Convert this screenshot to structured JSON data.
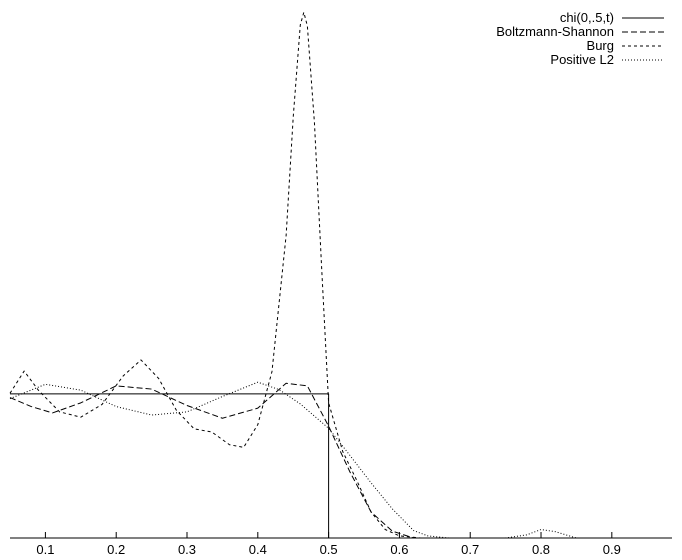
{
  "chart_data": {
    "type": "line",
    "title": "",
    "xlabel": "",
    "ylabel": "",
    "xlim": [
      0.05,
      0.985
    ],
    "ylim": [
      0,
      1
    ],
    "x_ticks": [
      0.1,
      0.2,
      0.3,
      0.4,
      0.5,
      0.6,
      0.7,
      0.8,
      0.9
    ],
    "x_tick_labels": [
      "0.1",
      "0.2",
      "0.3",
      "0.4",
      "0.5",
      "0.6",
      "0.7",
      "0.8",
      "0.9"
    ],
    "grid": false,
    "legend_position": "top-right",
    "series": [
      {
        "name": "chi(0,.5,t)",
        "style": "solid",
        "x": [
          0.05,
          0.5,
          0.5,
          0.5,
          0.985
        ],
        "y": [
          0.272,
          0.272,
          0.0,
          0.0,
          0.0
        ]
      },
      {
        "name": "Boltzmann-Shannon",
        "style": "dashed",
        "x": [
          0.05,
          0.08,
          0.11,
          0.15,
          0.2,
          0.25,
          0.3,
          0.35,
          0.4,
          0.44,
          0.47,
          0.5,
          0.53,
          0.56,
          0.59,
          0.62,
          0.66,
          0.7,
          0.75,
          0.8,
          0.85,
          0.9,
          0.95,
          0.985
        ],
        "y": [
          0.265,
          0.248,
          0.236,
          0.255,
          0.287,
          0.281,
          0.25,
          0.226,
          0.245,
          0.292,
          0.287,
          0.211,
          0.125,
          0.049,
          0.013,
          0.0,
          0.0,
          0.0,
          0.0,
          0.0,
          0.0,
          0.0,
          0.0,
          0.0
        ]
      },
      {
        "name": "Burg",
        "style": "short-dashed",
        "x": [
          0.05,
          0.07,
          0.09,
          0.12,
          0.15,
          0.18,
          0.21,
          0.235,
          0.26,
          0.285,
          0.31,
          0.335,
          0.36,
          0.38,
          0.4,
          0.42,
          0.44,
          0.45,
          0.46,
          0.465,
          0.47,
          0.48,
          0.49,
          0.5,
          0.52,
          0.54,
          0.56,
          0.58,
          0.6,
          0.63,
          0.66,
          0.7,
          0.75,
          0.8,
          0.85,
          0.9,
          0.95,
          0.985
        ],
        "y": [
          0.273,
          0.315,
          0.279,
          0.238,
          0.228,
          0.252,
          0.306,
          0.336,
          0.301,
          0.241,
          0.206,
          0.2,
          0.176,
          0.171,
          0.214,
          0.314,
          0.571,
          0.794,
          0.968,
          0.992,
          0.966,
          0.783,
          0.514,
          0.255,
          0.163,
          0.108,
          0.049,
          0.016,
          0.004,
          0.0,
          0.0,
          0.0,
          0.0,
          0.0,
          0.0,
          0.0,
          0.0,
          0.0
        ]
      },
      {
        "name": "Positive L2",
        "style": "dotted",
        "x": [
          0.05,
          0.1,
          0.15,
          0.2,
          0.25,
          0.3,
          0.35,
          0.4,
          0.43,
          0.46,
          0.5,
          0.53,
          0.56,
          0.59,
          0.62,
          0.64,
          0.67,
          0.7,
          0.75,
          0.78,
          0.8,
          0.82,
          0.85,
          0.9,
          0.95,
          0.985
        ],
        "y": [
          0.263,
          0.29,
          0.279,
          0.248,
          0.232,
          0.238,
          0.267,
          0.294,
          0.28,
          0.253,
          0.207,
          0.156,
          0.104,
          0.055,
          0.014,
          0.004,
          0.0,
          0.0,
          0.0,
          0.006,
          0.016,
          0.012,
          0.0,
          0.0,
          0.0,
          0.0
        ]
      }
    ]
  }
}
